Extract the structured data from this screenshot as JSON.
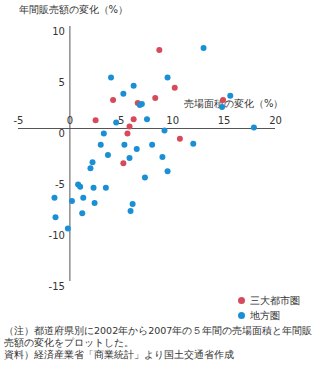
{
  "chart_data": {
    "type": "scatter",
    "title": "年間販売額の変化（%）",
    "x_label": "売場面積の変化（%）",
    "y_label": "年間販売額の変化（%）",
    "xlim": [
      -5,
      20
    ],
    "ylim": [
      -15,
      10
    ],
    "xticks": [
      -5,
      0,
      5,
      10,
      15,
      20
    ],
    "yticks": [
      -15,
      -10,
      -5,
      0,
      5,
      10
    ],
    "grid": false,
    "marker": "circle",
    "legend": "bottom-right",
    "series": [
      {
        "name": "三大都市圏",
        "color": "#d64a5b",
        "x": [
          2.5,
          4.2,
          5.2,
          5.8,
          5.6,
          6.2,
          6.6,
          8.3,
          8.7,
          10.2,
          10.7,
          14.9
        ],
        "values": [
          0.8,
          2.8,
          -3.4,
          0.2,
          -0.5,
          0.9,
          2.5,
          3.0,
          7.7,
          4.0,
          -1.0,
          2.8
        ]
      },
      {
        "name": "地方圏",
        "color": "#1a8fd5",
        "x": [
          -1.5,
          -1.4,
          -0.2,
          0.2,
          0.8,
          1.0,
          1.2,
          1.3,
          2.0,
          2.2,
          2.3,
          2.4,
          3.0,
          3.3,
          3.5,
          3.7,
          4.0,
          4.5,
          5.2,
          5.3,
          5.8,
          5.9,
          6.1,
          6.2,
          6.5,
          6.8,
          7.0,
          7.3,
          7.5,
          8.0,
          9.0,
          9.2,
          9.5,
          9.5,
          12.0,
          13.0,
          14.8,
          15.6,
          17.9
        ],
        "values": [
          -6.8,
          -8.7,
          -9.8,
          -7.1,
          -5.5,
          -5.7,
          -8.3,
          -6.8,
          -3.9,
          -3.3,
          -5.8,
          -7.3,
          -1.6,
          -0.5,
          -5.8,
          -2.6,
          5.0,
          0.6,
          3.4,
          -1.6,
          -2.9,
          -8.1,
          -7.4,
          4.2,
          -2.0,
          2.3,
          2.4,
          -4.8,
          0.9,
          -1.6,
          -2.8,
          -0.2,
          5.0,
          -4.2,
          -1.5,
          7.9,
          2.1,
          3.2,
          0.1
        ]
      }
    ],
    "annotations": [
      "（注）都道府県別に2002年から2007年の５年間の売場面積と年間販売額の変化をプロットした。",
      "資料）経済産業省「商業統計」より国土交通省作成"
    ]
  }
}
